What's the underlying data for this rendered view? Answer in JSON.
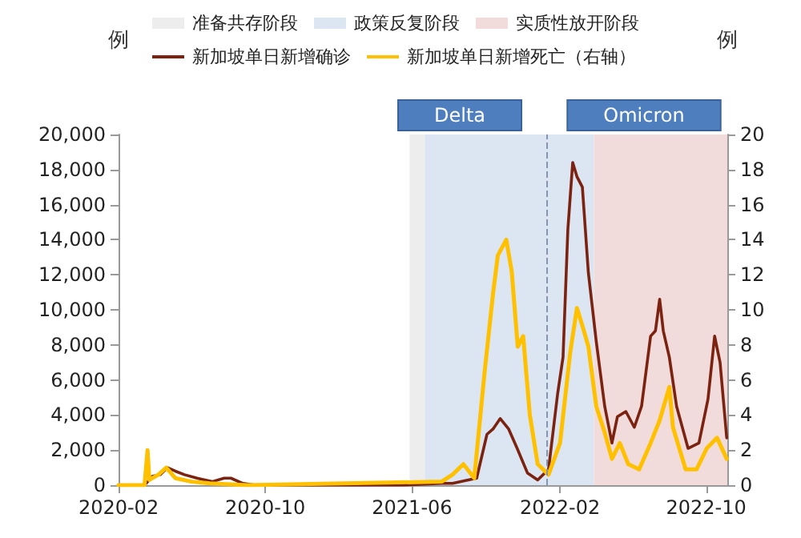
{
  "chart_data": {
    "type": "line",
    "ylabel": "例",
    "y2label": "例",
    "xlim": [
      "2020-02-01",
      "2022-11-05"
    ],
    "xticks": [
      "2020-02",
      "2020-10",
      "2021-06",
      "2022-02",
      "2022-10"
    ],
    "ylim": [
      0,
      20000
    ],
    "yticks": [
      {
        "value": 0,
        "label": "0"
      },
      {
        "value": 2000,
        "label": "2,000"
      },
      {
        "value": 4000,
        "label": "4,000"
      },
      {
        "value": 6000,
        "label": "6,000"
      },
      {
        "value": 8000,
        "label": "8,000"
      },
      {
        "value": 10000,
        "label": "10,000"
      },
      {
        "value": 12000,
        "label": "12,000"
      },
      {
        "value": 14000,
        "label": "14,000"
      },
      {
        "value": 16000,
        "label": "16,000"
      },
      {
        "value": 18000,
        "label": "18,000"
      },
      {
        "value": 20000,
        "label": "20,000"
      }
    ],
    "y2lim": [
      0,
      20
    ],
    "y2ticks": [
      0,
      2,
      4,
      6,
      8,
      10,
      12,
      14,
      16,
      18,
      20
    ],
    "bands": [
      {
        "axis": "x",
        "from": "2021-05-28",
        "to": "2021-06-22",
        "label": "准备共存阶段",
        "color": "#ededed"
      },
      {
        "axis": "x",
        "from": "2021-06-22",
        "to": "2022-03-29",
        "label": "政策反复阶段",
        "color": "#dce6f2"
      },
      {
        "axis": "x",
        "from": "2022-03-29",
        "to": "2022-11-05",
        "label": "实质性放开阶段",
        "color": "#f2dcdb"
      }
    ],
    "ref_lines": [
      {
        "axis": "x",
        "value": "2022-01-10",
        "color": "#8497b0",
        "line_style": "dashed"
      }
    ],
    "annotations": [
      "Delta",
      "Omicron"
    ],
    "legend": "top",
    "grid": false,
    "marker": "none",
    "series": [
      {
        "name": "新加坡单日新增确诊",
        "color": "#7b2310",
        "x": [
          "2020-02-01",
          "2020-03-15",
          "2020-03-28",
          "2020-04-10",
          "2020-04-22",
          "2020-05-05",
          "2020-05-20",
          "2020-06-10",
          "2020-07-05",
          "2020-07-25",
          "2020-08-05",
          "2020-08-25",
          "2020-09-15",
          "2021-01-01",
          "2021-05-15",
          "2021-07-20",
          "2021-08-07",
          "2021-09-16",
          "2021-10-03",
          "2021-10-13",
          "2021-10-25",
          "2021-11-08",
          "2021-11-22",
          "2021-12-09",
          "2021-12-26",
          "2022-01-13",
          "2022-01-28",
          "2022-02-06",
          "2022-02-14",
          "2022-02-22",
          "2022-03-01",
          "2022-03-10",
          "2022-03-20",
          "2022-04-02",
          "2022-04-16",
          "2022-04-28",
          "2022-05-07",
          "2022-05-21",
          "2022-06-04",
          "2022-06-16",
          "2022-07-01",
          "2022-07-09",
          "2022-07-16",
          "2022-07-22",
          "2022-08-01",
          "2022-08-13",
          "2022-09-01",
          "2022-09-19",
          "2022-10-04",
          "2022-10-15",
          "2022-10-24",
          "2022-11-04"
        ],
        "values": [
          0,
          0,
          500,
          600,
          1000,
          800,
          600,
          400,
          200,
          400,
          400,
          100,
          0,
          0,
          0,
          100,
          100,
          400,
          2900,
          3200,
          3800,
          3200,
          2100,
          700,
          300,
          900,
          5200,
          7300,
          14600,
          18400,
          17600,
          17000,
          12100,
          8200,
          4500,
          2400,
          3900,
          4200,
          3300,
          4500,
          8500,
          8800,
          10600,
          8800,
          7300,
          4500,
          2100,
          2400,
          4900,
          8500,
          7000,
          2700
        ]
      },
      {
        "name": "新加坡单日新增死亡（右轴）",
        "color": "#ffc000",
        "axis": "y2",
        "x": [
          "2020-02-01",
          "2020-03-15",
          "2020-03-20",
          "2020-03-23",
          "2020-04-07",
          "2020-04-20",
          "2020-05-05",
          "2020-06-01",
          "2020-07-01",
          "2020-09-01",
          "2021-07-20",
          "2021-08-07",
          "2021-08-25",
          "2021-09-12",
          "2021-09-29",
          "2021-10-13",
          "2021-10-21",
          "2021-11-04",
          "2021-11-13",
          "2021-11-23",
          "2021-12-02",
          "2021-12-13",
          "2021-12-26",
          "2022-01-13",
          "2022-02-01",
          "2022-02-18",
          "2022-03-01",
          "2022-03-10",
          "2022-03-20",
          "2022-04-02",
          "2022-04-16",
          "2022-04-28",
          "2022-05-11",
          "2022-05-25",
          "2022-06-12",
          "2022-07-01",
          "2022-07-16",
          "2022-08-01",
          "2022-08-07",
          "2022-08-28",
          "2022-09-15",
          "2022-10-02",
          "2022-10-19",
          "2022-11-04"
        ],
        "values": [
          0,
          0,
          2.0,
          0.3,
          0.6,
          1.0,
          0.4,
          0.2,
          0.1,
          0,
          0.2,
          0.6,
          1.2,
          0.4,
          6.4,
          10.9,
          13.1,
          14.0,
          12.2,
          7.9,
          8.5,
          4.0,
          1.2,
          0.6,
          2.4,
          7.6,
          10.1,
          9.1,
          7.9,
          4.5,
          3.0,
          1.5,
          2.4,
          1.2,
          0.9,
          2.4,
          3.7,
          5.6,
          3.3,
          0.9,
          0.9,
          2.1,
          2.7,
          1.5
        ]
      }
    ]
  }
}
